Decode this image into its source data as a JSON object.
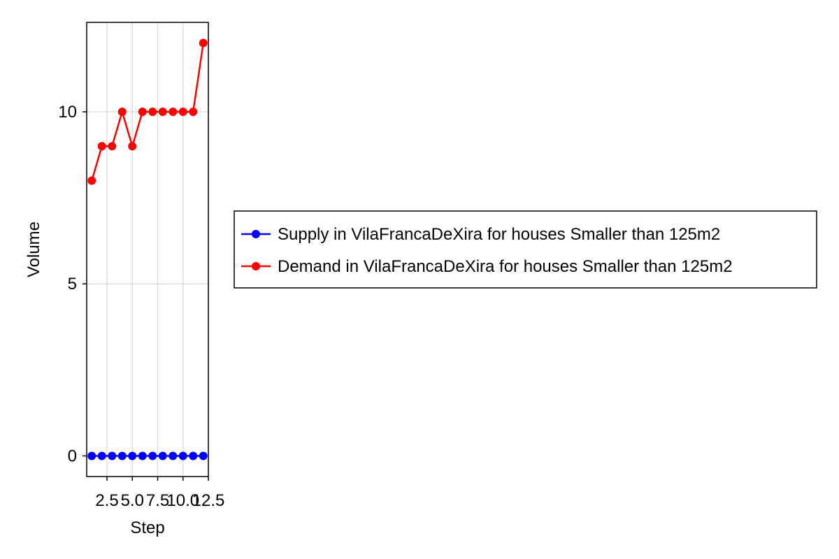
{
  "chart_data": {
    "type": "line",
    "title": "",
    "xlabel": "Step",
    "ylabel": "Volume",
    "x": [
      1,
      2,
      3,
      4,
      5,
      6,
      7,
      8,
      9,
      10,
      11,
      12
    ],
    "xlim": [
      0.5,
      12.5
    ],
    "ylim": [
      -0.6,
      12.6
    ],
    "x_ticks": [
      2.5,
      5.0,
      7.5,
      10.0,
      12.5
    ],
    "x_tick_labels": [
      "2.5",
      "5.0",
      "7.5",
      "10.0",
      "12.5"
    ],
    "y_ticks": [
      0,
      5,
      10
    ],
    "y_tick_labels": [
      "0",
      "5",
      "10"
    ],
    "grid": true,
    "legend_position": "right",
    "series": [
      {
        "name": "Supply in VilaFrancaDeXira for houses Smaller than 125m2",
        "color": "#0000ff",
        "values": [
          0,
          0,
          0,
          0,
          0,
          0,
          0,
          0,
          0,
          0,
          0,
          0
        ]
      },
      {
        "name": "Demand in VilaFrancaDeXira for houses Smaller than 125m2",
        "color": "#ff0000",
        "values": [
          8,
          9,
          9,
          10,
          9,
          10,
          10,
          10,
          10,
          10,
          10,
          12
        ]
      }
    ]
  }
}
